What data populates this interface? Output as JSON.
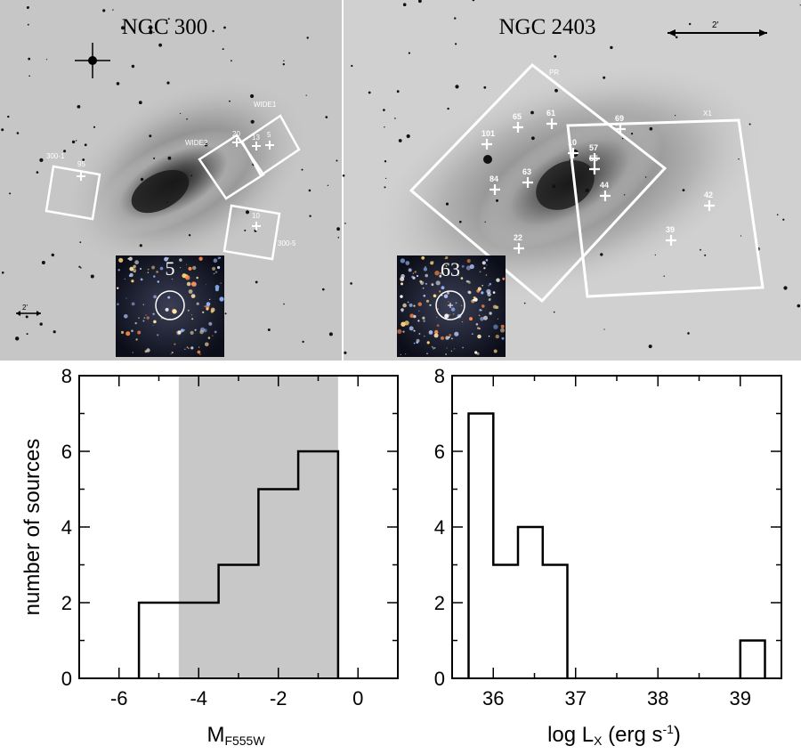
{
  "images": {
    "left": {
      "title": "NGC 300",
      "scale_label": "2'",
      "fields": [
        "300-1",
        "WIDE2",
        "WIDE1",
        "300-5"
      ],
      "sources": [
        "95",
        "20",
        "13",
        "5",
        "10"
      ],
      "inset_label": "5"
    },
    "right": {
      "title": "NGC 2403",
      "scale_label": "2'",
      "fields": [
        "PR",
        "X1"
      ],
      "sources": [
        "65",
        "61",
        "69",
        "101",
        "10",
        "57",
        "55",
        "63",
        "84",
        "44",
        "42",
        "39",
        "22"
      ],
      "inset_label": "63"
    }
  },
  "chart_data": [
    {
      "type": "histogram",
      "xlabel_main": "M",
      "xlabel_sub": "F555W",
      "ylabel": "number of sources",
      "xlim": [
        -7,
        1
      ],
      "ylim": [
        0,
        8
      ],
      "xticks": [
        "-6",
        "-4",
        "-2",
        "0"
      ],
      "yticks": [
        "0",
        "2",
        "4",
        "6",
        "8"
      ],
      "shaded_region": [
        -4.5,
        -0.5
      ],
      "bins": [
        {
          "from": -5.5,
          "to": -4.5,
          "count": 2
        },
        {
          "from": -4.5,
          "to": -3.5,
          "count": 2
        },
        {
          "from": -3.5,
          "to": -2.5,
          "count": 3
        },
        {
          "from": -2.5,
          "to": -1.5,
          "count": 5
        },
        {
          "from": -1.5,
          "to": -0.5,
          "count": 6
        }
      ]
    },
    {
      "type": "histogram",
      "xlabel_main": "log L",
      "xlabel_sub": "X",
      "xlabel_tail": " (erg s",
      "xlabel_sup": "-1",
      "xlabel_end": ")",
      "xlim": [
        35.5,
        39.5
      ],
      "ylim": [
        0,
        8
      ],
      "xticks": [
        "36",
        "37",
        "38",
        "39"
      ],
      "yticks": [
        "0",
        "2",
        "4",
        "6",
        "8"
      ],
      "bins": [
        {
          "from": 35.7,
          "to": 36.0,
          "count": 7
        },
        {
          "from": 36.0,
          "to": 36.3,
          "count": 3
        },
        {
          "from": 36.3,
          "to": 36.6,
          "count": 4
        },
        {
          "from": 36.6,
          "to": 36.9,
          "count": 3
        },
        {
          "from": 39.0,
          "to": 39.3,
          "count": 1
        }
      ]
    }
  ]
}
